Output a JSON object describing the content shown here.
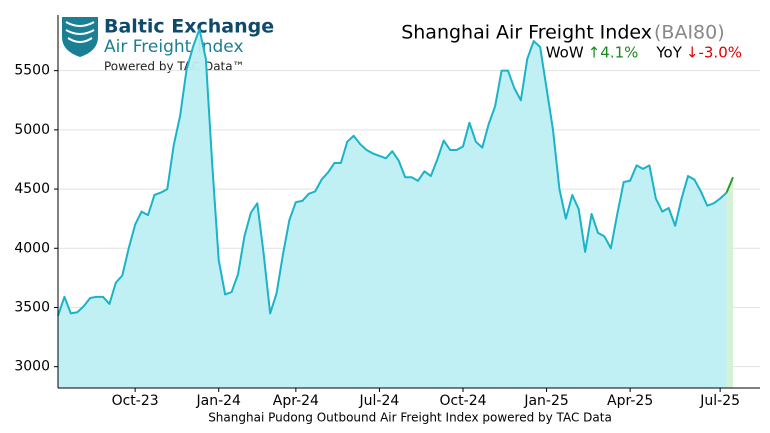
{
  "logo": {
    "name": "Baltic Exchange",
    "product": "Air Freight Index",
    "powered_by": "Powered by TAC Data™"
  },
  "chart_data": {
    "type": "area",
    "title": "Shanghai Air Freight Index",
    "title_code": "(BAI80)",
    "stats": [
      {
        "label": "WoW",
        "value": "↑4.1%",
        "color": "#1a8a1a"
      },
      {
        "label": "YoY",
        "value": "↓-3.0%",
        "color": "#e00000"
      }
    ],
    "x_label": "Shanghai Pudong Outbound Air Freight Index powered by TAC Data",
    "categories": [
      null,
      null,
      null,
      null,
      null,
      null,
      null,
      null,
      null,
      null,
      null,
      null,
      "Oct-23",
      null,
      null,
      null,
      null,
      null,
      null,
      null,
      null,
      null,
      null,
      null,
      null,
      "Jan-24",
      null,
      null,
      null,
      null,
      null,
      null,
      null,
      null,
      null,
      null,
      null,
      "Apr-24",
      null,
      null,
      null,
      null,
      null,
      null,
      null,
      null,
      null,
      null,
      null,
      null,
      "Jul-24",
      null,
      null,
      null,
      null,
      null,
      null,
      null,
      null,
      null,
      null,
      null,
      null,
      "Oct-24",
      null,
      null,
      null,
      null,
      null,
      null,
      null,
      null,
      null,
      null,
      null,
      null,
      "Jan-25",
      null,
      null,
      null,
      null,
      null,
      null,
      null,
      null,
      null,
      null,
      null,
      null,
      "Apr-25",
      null,
      null,
      null,
      null,
      null,
      null,
      null,
      null,
      null,
      null,
      null,
      null,
      null,
      "Jul-25",
      null,
      null
    ],
    "values": [
      3430,
      3590,
      3450,
      3460,
      3510,
      3580,
      3590,
      3590,
      3530,
      3710,
      3770,
      4000,
      4200,
      4310,
      4280,
      4450,
      4470,
      4500,
      4870,
      5120,
      5510,
      5700,
      5850,
      5600,
      4700,
      3900,
      3610,
      3630,
      3780,
      4100,
      4300,
      4380,
      3950,
      3450,
      3620,
      3950,
      4240,
      4390,
      4400,
      4460,
      4480,
      4580,
      4640,
      4720,
      4720,
      4900,
      4950,
      4880,
      4830,
      4800,
      4780,
      4760,
      4820,
      4740,
      4600,
      4600,
      4570,
      4650,
      4610,
      4750,
      4910,
      4830,
      4830,
      4860,
      5060,
      4900,
      4850,
      5050,
      5200,
      5500,
      5500,
      5350,
      5250,
      5600,
      5750,
      5700,
      5350,
      5000,
      4500,
      4250,
      4450,
      4330,
      3970,
      4290,
      4130,
      4100,
      4000,
      4290,
      4560,
      4570,
      4700,
      4670,
      4700,
      4420,
      4310,
      4340,
      4190,
      4420,
      4610,
      4580,
      4480,
      4360,
      4380,
      4420,
      4470,
      4600
    ],
    "color": "#1ab3c8",
    "fill_color": "#bdeef3",
    "last_segment_color": "#2a9a2a",
    "last_segment_fill": "#d6f2d6",
    "ylim": [
      2820,
      5970
    ],
    "yticks": [
      3000,
      3500,
      4000,
      4500,
      5000,
      5500
    ],
    "grid": true
  }
}
